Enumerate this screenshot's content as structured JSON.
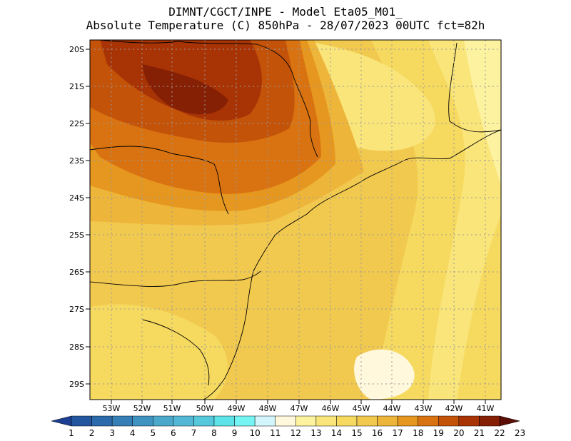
{
  "header": {
    "line1": "DIMNT/CGCT/INPE  -   Model Eta05_M01_",
    "line2": "Absolute Temperature (C) 850hPa  -   28/07/2023 00UTC fct=82h"
  },
  "map": {
    "lat_labels": [
      "20S",
      "21S",
      "22S",
      "23S",
      "24S",
      "25S",
      "26S",
      "27S",
      "28S",
      "29S"
    ],
    "lon_labels": [
      "53W",
      "52W",
      "51W",
      "50W",
      "49W",
      "48W",
      "47W",
      "46W",
      "45W",
      "44W",
      "43W",
      "42W",
      "41W"
    ]
  },
  "colorbar": {
    "labels": [
      "1",
      "2",
      "3",
      "4",
      "5",
      "6",
      "7",
      "8",
      "9",
      "10",
      "11",
      "12",
      "13",
      "14",
      "15",
      "16",
      "17",
      "18",
      "19",
      "20",
      "21",
      "22",
      "23"
    ],
    "colors": [
      "#1c3f94",
      "#24569f",
      "#2b6aab",
      "#357fb6",
      "#3f93c1",
      "#4ca8cb",
      "#53b8d6",
      "#56c8dc",
      "#5ee3e8",
      "#74f4f3",
      "#d2f6fb",
      "#fff8dc",
      "#fdf2a0",
      "#f9e57a",
      "#f6d95f",
      "#f2c94f",
      "#eeb53b",
      "#e6971f",
      "#d97210",
      "#c4530a",
      "#a83406",
      "#862005",
      "#5c0d06"
    ]
  }
}
